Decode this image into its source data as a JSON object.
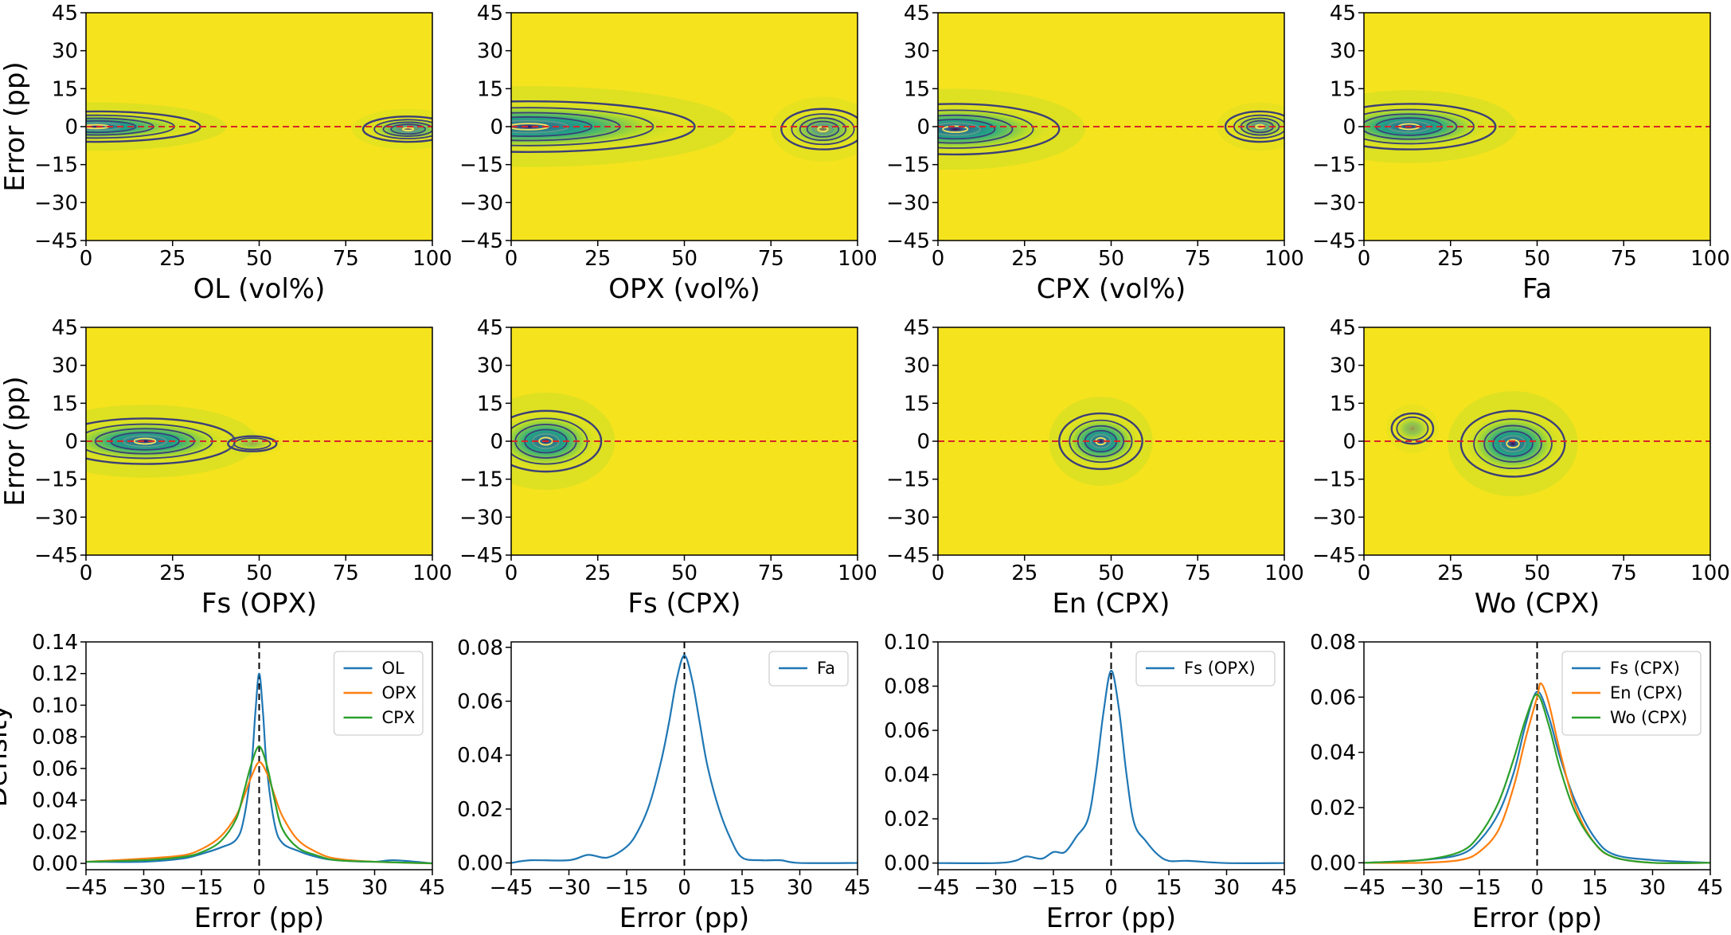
{
  "chart_data": [
    {
      "type": "heatmap",
      "panel": "A",
      "xlabel": "OL (vol%)",
      "ylabel": "Error (pp)",
      "xlim": [
        0,
        100
      ],
      "ylim": [
        -45,
        45
      ],
      "xticks": [
        0,
        25,
        50,
        75,
        100
      ],
      "yticks": [
        45,
        30,
        15,
        0,
        -15,
        -30,
        -45
      ],
      "reference_line": {
        "y": 0,
        "color": "#d62728",
        "style": "dashed"
      },
      "density_blobs": [
        {
          "cx": 3,
          "cy": 0,
          "sx": 30,
          "sy": 6,
          "weight": 1.0
        },
        {
          "cx": 93,
          "cy": -1,
          "sx": 13,
          "sy": 5,
          "weight": 0.7
        }
      ],
      "colors": {
        "background": "#f5e31d",
        "low": "#b5dd2b",
        "mid": "#22a884",
        "high": "#31688e",
        "peak": "#440154"
      }
    },
    {
      "type": "heatmap",
      "panel": "B",
      "xlabel": "OPX (vol%)",
      "ylabel": "",
      "xlim": [
        0,
        100
      ],
      "ylim": [
        -45,
        45
      ],
      "xticks": [
        0,
        25,
        50,
        75,
        100
      ],
      "yticks": [
        45,
        30,
        15,
        0,
        -15,
        -30,
        -45
      ],
      "reference_line": {
        "y": 0,
        "color": "#d62728",
        "style": "dashed"
      },
      "density_blobs": [
        {
          "cx": 5,
          "cy": 0,
          "sx": 48,
          "sy": 10,
          "weight": 1.0
        },
        {
          "cx": 90,
          "cy": -1,
          "sx": 12,
          "sy": 8,
          "weight": 0.6
        }
      ],
      "colors": {
        "background": "#f5e31d",
        "low": "#b5dd2b",
        "mid": "#22a884",
        "high": "#31688e",
        "peak": "#440154"
      }
    },
    {
      "type": "heatmap",
      "panel": "C",
      "xlabel": "CPX (vol%)",
      "ylabel": "",
      "xlim": [
        0,
        100
      ],
      "ylim": [
        -45,
        45
      ],
      "xticks": [
        0,
        25,
        50,
        75,
        100
      ],
      "yticks": [
        45,
        30,
        15,
        0,
        -15,
        -30,
        -45
      ],
      "reference_line": {
        "y": 0,
        "color": "#d62728",
        "style": "dashed"
      },
      "density_blobs": [
        {
          "cx": 5,
          "cy": -1,
          "sx": 30,
          "sy": 10,
          "weight": 1.0
        },
        {
          "cx": 93,
          "cy": 0,
          "sx": 10,
          "sy": 6,
          "weight": 0.55
        }
      ],
      "colors": {
        "background": "#f5e31d",
        "low": "#b5dd2b",
        "mid": "#22a884",
        "high": "#31688e",
        "peak": "#440154"
      }
    },
    {
      "type": "heatmap",
      "panel": "D",
      "xlabel": "Fa",
      "ylabel": "",
      "xlim": [
        0,
        100
      ],
      "ylim": [
        -45,
        45
      ],
      "xticks": [
        0,
        25,
        50,
        75,
        100
      ],
      "yticks": [
        45,
        30,
        15,
        0,
        -15,
        -30,
        -45
      ],
      "reference_line": {
        "y": 0,
        "color": "#d62728",
        "style": "dashed"
      },
      "density_blobs": [
        {
          "cx": 13,
          "cy": 0,
          "sx": 25,
          "sy": 9,
          "weight": 1.0
        }
      ],
      "colors": {
        "background": "#f5e31d",
        "low": "#b5dd2b",
        "mid": "#22a884",
        "high": "#31688e",
        "peak": "#440154"
      }
    },
    {
      "type": "heatmap",
      "panel": "E",
      "xlabel": "Fs (OPX)",
      "ylabel": "Error (pp)",
      "xlim": [
        0,
        100
      ],
      "ylim": [
        -45,
        45
      ],
      "xticks": [
        0,
        25,
        50,
        75,
        100
      ],
      "yticks": [
        45,
        30,
        15,
        0,
        -15,
        -30,
        -45
      ],
      "reference_line": {
        "y": 0,
        "color": "#d62728",
        "style": "dashed"
      },
      "density_blobs": [
        {
          "cx": 17,
          "cy": 0,
          "sx": 26,
          "sy": 9,
          "weight": 1.0
        },
        {
          "cx": 48,
          "cy": -1,
          "sx": 7,
          "sy": 3,
          "weight": 0.35
        }
      ],
      "colors": {
        "background": "#f5e31d",
        "low": "#b5dd2b",
        "mid": "#22a884",
        "high": "#31688e",
        "peak": "#440154"
      }
    },
    {
      "type": "heatmap",
      "panel": "F",
      "xlabel": "Fs (CPX)",
      "ylabel": "",
      "xlim": [
        0,
        100
      ],
      "ylim": [
        -45,
        45
      ],
      "xticks": [
        0,
        25,
        50,
        75,
        100
      ],
      "yticks": [
        45,
        30,
        15,
        0,
        -15,
        -30,
        -45
      ],
      "reference_line": {
        "y": 0,
        "color": "#d62728",
        "style": "dashed"
      },
      "density_blobs": [
        {
          "cx": 10,
          "cy": 0,
          "sx": 16,
          "sy": 12,
          "weight": 1.0
        }
      ],
      "colors": {
        "background": "#f5e31d",
        "low": "#b5dd2b",
        "mid": "#22a884",
        "high": "#31688e",
        "peak": "#440154"
      }
    },
    {
      "type": "heatmap",
      "panel": "G",
      "xlabel": "En (CPX)",
      "ylabel": "",
      "xlim": [
        0,
        100
      ],
      "ylim": [
        -45,
        45
      ],
      "xticks": [
        0,
        25,
        50,
        75,
        100
      ],
      "yticks": [
        45,
        30,
        15,
        0,
        -15,
        -30,
        -45
      ],
      "reference_line": {
        "y": 0,
        "color": "#d62728",
        "style": "dashed"
      },
      "density_blobs": [
        {
          "cx": 47,
          "cy": 0,
          "sx": 12,
          "sy": 11,
          "weight": 1.0
        }
      ],
      "colors": {
        "background": "#f5e31d",
        "low": "#b5dd2b",
        "mid": "#22a884",
        "high": "#31688e",
        "peak": "#440154"
      }
    },
    {
      "type": "heatmap",
      "panel": "H",
      "xlabel": "Wo (CPX)",
      "ylabel": "",
      "xlim": [
        0,
        100
      ],
      "ylim": [
        -45,
        45
      ],
      "xticks": [
        0,
        25,
        50,
        75,
        100
      ],
      "yticks": [
        45,
        30,
        15,
        0,
        -15,
        -30,
        -45
      ],
      "reference_line": {
        "y": 0,
        "color": "#d62728",
        "style": "dashed"
      },
      "density_blobs": [
        {
          "cx": 43,
          "cy": -1,
          "sx": 15,
          "sy": 13,
          "weight": 1.0
        },
        {
          "cx": 14,
          "cy": 5,
          "sx": 6,
          "sy": 6,
          "weight": 0.45
        }
      ],
      "colors": {
        "background": "#f5e31d",
        "low": "#b5dd2b",
        "mid": "#22a884",
        "high": "#31688e",
        "peak": "#440154"
      }
    },
    {
      "type": "line",
      "panel": "I",
      "xlabel": "Error (pp)",
      "ylabel": "Density",
      "xlim": [
        -45,
        45
      ],
      "ylim": [
        -0.004,
        0.14
      ],
      "xticks": [
        -45,
        -30,
        -15,
        0,
        15,
        30,
        45
      ],
      "yticks": [
        0.0,
        0.02,
        0.04,
        0.06,
        0.08,
        0.1,
        0.12,
        0.14
      ],
      "ytick_labels": [
        "0.00",
        "0.02",
        "0.04",
        "0.06",
        "0.08",
        "0.10",
        "0.12",
        "0.14"
      ],
      "reference_line": {
        "x": 0,
        "color": "#000000",
        "style": "dashed"
      },
      "legend_position": "top-right",
      "series": [
        {
          "name": "OL",
          "color": "#1f77b4",
          "x": [
            -45,
            -30,
            -20,
            -15,
            -10,
            -6,
            -4,
            -2,
            -1,
            0,
            1,
            2,
            4,
            6,
            10,
            15,
            20,
            30,
            35,
            45
          ],
          "y": [
            0.001,
            0.001,
            0.003,
            0.006,
            0.01,
            0.015,
            0.028,
            0.062,
            0.095,
            0.12,
            0.095,
            0.06,
            0.025,
            0.013,
            0.008,
            0.004,
            0.002,
            0.001,
            0.002,
            0.0
          ]
        },
        {
          "name": "OPX",
          "color": "#ff7f0e",
          "x": [
            -45,
            -30,
            -20,
            -15,
            -10,
            -6,
            -4,
            -2,
            0,
            2,
            4,
            6,
            10,
            15,
            20,
            30,
            45
          ],
          "y": [
            0.001,
            0.003,
            0.005,
            0.009,
            0.017,
            0.03,
            0.042,
            0.055,
            0.064,
            0.057,
            0.043,
            0.03,
            0.015,
            0.007,
            0.003,
            0.001,
            0.0
          ]
        },
        {
          "name": "CPX",
          "color": "#2ca02c",
          "x": [
            -45,
            -30,
            -20,
            -15,
            -10,
            -6,
            -4,
            -2,
            0,
            2,
            4,
            6,
            10,
            15,
            20,
            30,
            45
          ],
          "y": [
            0.001,
            0.002,
            0.004,
            0.007,
            0.014,
            0.028,
            0.045,
            0.063,
            0.074,
            0.062,
            0.04,
            0.022,
            0.01,
            0.005,
            0.002,
            0.001,
            0.0
          ]
        }
      ]
    },
    {
      "type": "line",
      "panel": "J",
      "xlabel": "Error (pp)",
      "ylabel": "",
      "xlim": [
        -45,
        45
      ],
      "ylim": [
        -0.0025,
        0.082
      ],
      "xticks": [
        -45,
        -30,
        -15,
        0,
        15,
        30,
        45
      ],
      "yticks": [
        0.0,
        0.02,
        0.04,
        0.06,
        0.08
      ],
      "ytick_labels": [
        "0.00",
        "0.02",
        "0.04",
        "0.06",
        "0.08"
      ],
      "reference_line": {
        "x": 0,
        "color": "#000000",
        "style": "dashed"
      },
      "legend_position": "top-right",
      "series": [
        {
          "name": "Fa",
          "color": "#1f77b4",
          "x": [
            -45,
            -40,
            -30,
            -25,
            -20,
            -15,
            -12,
            -9,
            -6,
            -4,
            -2,
            0,
            2,
            4,
            6,
            9,
            12,
            15,
            20,
            25,
            30,
            45
          ],
          "y": [
            0.0,
            0.001,
            0.001,
            0.003,
            0.002,
            0.006,
            0.012,
            0.022,
            0.038,
            0.052,
            0.068,
            0.077,
            0.068,
            0.052,
            0.036,
            0.02,
            0.009,
            0.002,
            0.001,
            0.001,
            0.0,
            0.0
          ]
        }
      ]
    },
    {
      "type": "line",
      "panel": "K",
      "xlabel": "Error (pp)",
      "ylabel": "",
      "xlim": [
        -45,
        45
      ],
      "ylim": [
        -0.003,
        0.1
      ],
      "xticks": [
        -45,
        -30,
        -15,
        0,
        15,
        30,
        45
      ],
      "yticks": [
        0.0,
        0.02,
        0.04,
        0.06,
        0.08,
        0.1
      ],
      "ytick_labels": [
        "0.00",
        "0.02",
        "0.04",
        "0.06",
        "0.08",
        "0.10"
      ],
      "reference_line": {
        "x": 0,
        "color": "#000000",
        "style": "dashed"
      },
      "legend_position": "top-right",
      "series": [
        {
          "name": "Fs (OPX)",
          "color": "#1f77b4",
          "x": [
            -45,
            -30,
            -25,
            -22,
            -18,
            -15,
            -12,
            -9,
            -6,
            -4,
            -2,
            0,
            2,
            4,
            6,
            9,
            12,
            15,
            20,
            30,
            45
          ],
          "y": [
            0.0,
            0.0,
            0.001,
            0.003,
            0.002,
            0.005,
            0.005,
            0.012,
            0.02,
            0.04,
            0.068,
            0.087,
            0.07,
            0.04,
            0.018,
            0.01,
            0.004,
            0.001,
            0.001,
            0.0,
            0.0
          ]
        }
      ]
    },
    {
      "type": "line",
      "panel": "L",
      "xlabel": "Error (pp)",
      "ylabel": "",
      "xlim": [
        -45,
        45
      ],
      "ylim": [
        -0.0025,
        0.08
      ],
      "xticks": [
        -45,
        -30,
        -15,
        0,
        15,
        30,
        45
      ],
      "yticks": [
        0.0,
        0.02,
        0.04,
        0.06,
        0.08
      ],
      "ytick_labels": [
        "0.00",
        "0.02",
        "0.04",
        "0.06",
        "0.08"
      ],
      "reference_line": {
        "x": 0,
        "color": "#000000",
        "style": "dashed"
      },
      "legend_position": "top-right",
      "series": [
        {
          "name": "Fs (CPX)",
          "color": "#1f77b4",
          "x": [
            -45,
            -30,
            -20,
            -15,
            -10,
            -6,
            -3,
            0,
            3,
            6,
            10,
            15,
            20,
            30,
            45
          ],
          "y": [
            0.0,
            0.001,
            0.003,
            0.008,
            0.018,
            0.033,
            0.05,
            0.062,
            0.053,
            0.038,
            0.022,
            0.009,
            0.003,
            0.001,
            0.0
          ]
        },
        {
          "name": "En (CPX)",
          "color": "#ff7f0e",
          "x": [
            -45,
            -30,
            -20,
            -15,
            -10,
            -6,
            -3,
            0,
            1,
            3,
            6,
            10,
            15,
            20,
            30,
            45
          ],
          "y": [
            0.0,
            0.0,
            0.001,
            0.004,
            0.012,
            0.028,
            0.045,
            0.06,
            0.065,
            0.058,
            0.04,
            0.02,
            0.007,
            0.002,
            0.0,
            0.0
          ]
        },
        {
          "name": "Wo (CPX)",
          "color": "#2ca02c",
          "x": [
            -45,
            -30,
            -20,
            -15,
            -10,
            -6,
            -3,
            0,
            3,
            6,
            10,
            15,
            20,
            30,
            45
          ],
          "y": [
            0.0,
            0.001,
            0.004,
            0.01,
            0.022,
            0.038,
            0.052,
            0.061,
            0.05,
            0.034,
            0.018,
            0.007,
            0.002,
            0.0,
            0.0
          ]
        }
      ]
    }
  ]
}
